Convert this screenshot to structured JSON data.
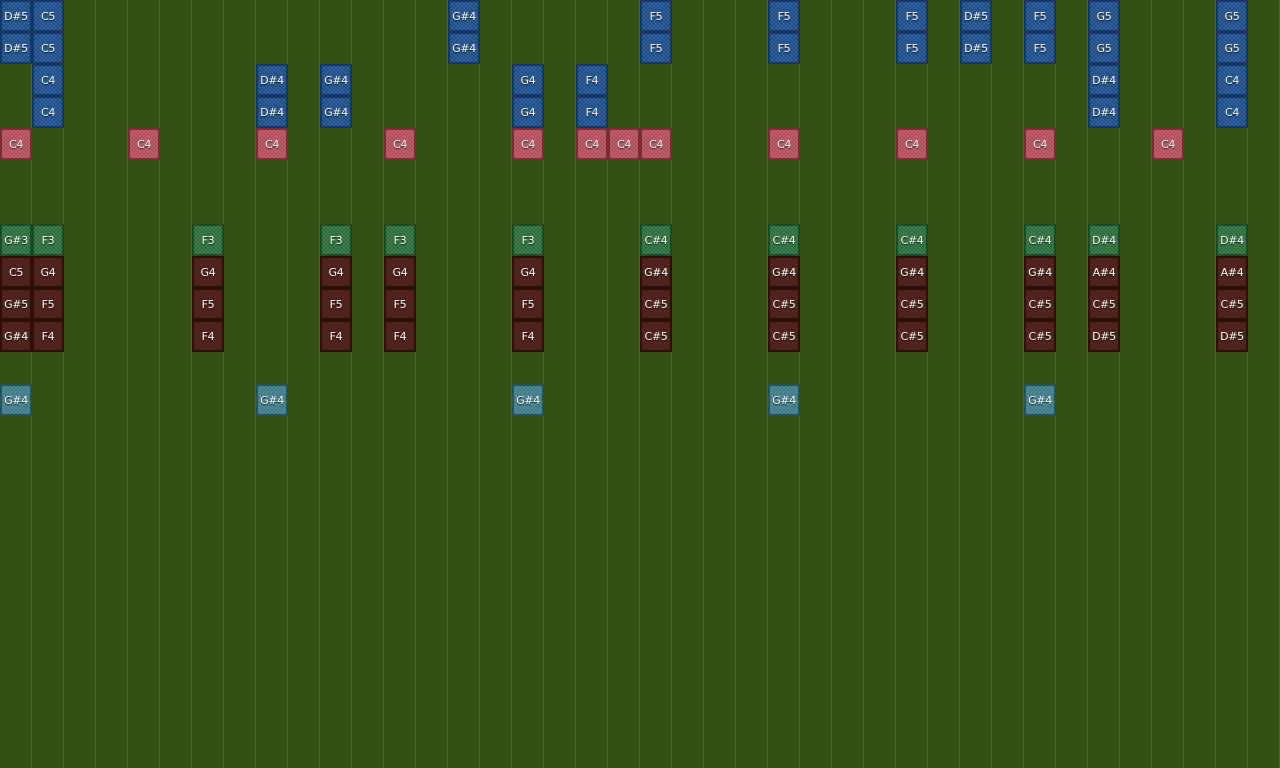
{
  "colors": {
    "background": "#364f14",
    "grid_line": "#50702c",
    "lead": "#1d4f8c",
    "beat": "#b34f5d",
    "bass": "#2b6e3a",
    "chord": "#4c1e18",
    "perc": "#3d7c86"
  },
  "lanes": {
    "lead_1": [
      "D#5",
      "C5",
      "",
      "",
      "",
      "",
      "",
      "",
      "",
      "",
      "",
      "",
      "",
      "",
      "G#4",
      "",
      "",
      "",
      "",
      "",
      "F5",
      "",
      "",
      "",
      "F5",
      "",
      "",
      "",
      "F5",
      "",
      "D#5",
      "",
      "F5",
      "",
      "G5",
      "",
      "",
      "",
      "G5",
      ""
    ],
    "lead_2": [
      "D#5",
      "C5",
      "",
      "",
      "",
      "",
      "",
      "",
      "",
      "",
      "",
      "",
      "",
      "",
      "G#4",
      "",
      "",
      "",
      "",
      "",
      "F5",
      "",
      "",
      "",
      "F5",
      "",
      "",
      "",
      "F5",
      "",
      "D#5",
      "",
      "F5",
      "",
      "G5",
      "",
      "",
      "",
      "G5",
      ""
    ],
    "lead_3": [
      "",
      "C4",
      "",
      "",
      "",
      "",
      "",
      "",
      "D#4",
      "",
      "G#4",
      "",
      "",
      "",
      "",
      "",
      "G4",
      "",
      "F4",
      "",
      "",
      "",
      "",
      "",
      "",
      "",
      "",
      "",
      "",
      "",
      "",
      "",
      "",
      "",
      "D#4",
      "",
      "",
      "",
      "C4",
      ""
    ],
    "lead_4": [
      "",
      "C4",
      "",
      "",
      "",
      "",
      "",
      "",
      "D#4",
      "",
      "G#4",
      "",
      "",
      "",
      "",
      "",
      "G4",
      "",
      "F4",
      "",
      "",
      "",
      "",
      "",
      "",
      "",
      "",
      "",
      "",
      "",
      "",
      "",
      "",
      "",
      "D#4",
      "",
      "",
      "",
      "C4",
      ""
    ],
    "beat": [
      "C4",
      "",
      "",
      "",
      "C4",
      "",
      "",
      "",
      "C4",
      "",
      "",
      "",
      "C4",
      "",
      "",
      "",
      "C4",
      "",
      "C4",
      "C4",
      "C4",
      "",
      "",
      "",
      "C4",
      "",
      "",
      "",
      "C4",
      "",
      "",
      "",
      "C4",
      "",
      "",
      "",
      "C4",
      "",
      "",
      ""
    ],
    "bass": [
      "G#3",
      "F3",
      "",
      "",
      "",
      "",
      "F3",
      "",
      "",
      "",
      "F3",
      "",
      "F3",
      "",
      "",
      "",
      "F3",
      "",
      "",
      "",
      "C#4",
      "",
      "",
      "",
      "C#4",
      "",
      "",
      "",
      "C#4",
      "",
      "",
      "",
      "C#4",
      "",
      "D#4",
      "",
      "",
      "",
      "D#4",
      ""
    ],
    "chord_1": [
      "C5",
      "G4",
      "",
      "",
      "",
      "",
      "G4",
      "",
      "",
      "",
      "G4",
      "",
      "G4",
      "",
      "",
      "",
      "G4",
      "",
      "",
      "",
      "G#4",
      "",
      "",
      "",
      "G#4",
      "",
      "",
      "",
      "G#4",
      "",
      "",
      "",
      "G#4",
      "",
      "A#4",
      "",
      "",
      "",
      "A#4",
      ""
    ],
    "chord_2": [
      "G#5",
      "F5",
      "",
      "",
      "",
      "",
      "F5",
      "",
      "",
      "",
      "F5",
      "",
      "F5",
      "",
      "",
      "",
      "F5",
      "",
      "",
      "",
      "C#5",
      "",
      "",
      "",
      "C#5",
      "",
      "",
      "",
      "C#5",
      "",
      "",
      "",
      "C#5",
      "",
      "C#5",
      "",
      "",
      "",
      "C#5",
      ""
    ],
    "chord_3": [
      "G#4",
      "F4",
      "",
      "",
      "",
      "",
      "F4",
      "",
      "",
      "",
      "F4",
      "",
      "F4",
      "",
      "",
      "",
      "F4",
      "",
      "",
      "",
      "C#5",
      "",
      "",
      "",
      "C#5",
      "",
      "",
      "",
      "C#5",
      "",
      "",
      "",
      "C#5",
      "",
      "D#5",
      "",
      "",
      "",
      "D#5",
      ""
    ],
    "perc": [
      "G#4",
      "",
      "",
      "",
      "",
      "",
      "",
      "",
      "G#4",
      "",
      "",
      "",
      "",
      "",
      "",
      "",
      "G#4",
      "",
      "",
      "",
      "",
      "",
      "",
      "",
      "G#4",
      "",
      "",
      "",
      "",
      "",
      "",
      "",
      "G#4",
      "",
      "",
      "",
      "",
      "",
      "",
      ""
    ]
  }
}
